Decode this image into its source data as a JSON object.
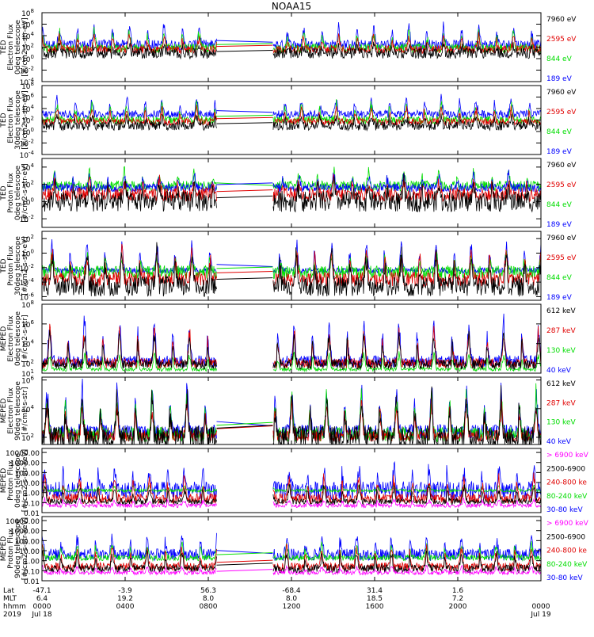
{
  "title": "NOAA15",
  "colors": {
    "blue": "#0000ff",
    "red": "#e00000",
    "green": "#00dd00",
    "black": "#000000",
    "magenta": "#ff00ff"
  },
  "xaxis": {
    "rows": [
      {
        "name": "Lat",
        "values": [
          "-47.1",
          "-3.9",
          "56.3",
          "-68.4",
          "31.4",
          "1.6",
          ""
        ]
      },
      {
        "name": "MLT",
        "values": [
          "6.4",
          "19.2",
          "8.0",
          "8.0",
          "18.5",
          "7.2",
          ""
        ]
      },
      {
        "name": "hhmm",
        "values": [
          "0000",
          "0400",
          "0800",
          "1200",
          "1600",
          "2000",
          "0000"
        ]
      },
      {
        "name": "2019",
        "values": [
          "Jul 18",
          "",
          "",
          "",
          "",
          "",
          "Jul 19"
        ]
      }
    ],
    "range_hours": [
      0,
      24
    ],
    "tick_hours": [
      0,
      4,
      8,
      12,
      16,
      20,
      24
    ]
  },
  "chart_data": [
    {
      "type": "line",
      "id": "p1",
      "ylabel_lines": [
        "TED",
        "Electron Flux",
        "0deg telescope",
        "[#/cm2-s-str-eV]"
      ],
      "scale": "log",
      "ylim": [
        -4,
        8
      ],
      "ticks": [
        {
          "v": 8,
          "b": "10",
          "e": "8"
        },
        {
          "v": 6,
          "b": "10",
          "e": "6"
        },
        {
          "v": 4,
          "b": "10",
          "e": "4"
        },
        {
          "v": 2,
          "b": "10",
          "e": "2"
        },
        {
          "v": 0,
          "b": "10",
          "e": "0"
        },
        {
          "v": -2,
          "b": "10",
          "e": "-2"
        },
        {
          "v": -4,
          "b": "10",
          "e": "-4"
        }
      ],
      "legend": [
        {
          "text": "7960 eV",
          "color": "black"
        },
        {
          "text": "2595 eV",
          "color": "red"
        },
        {
          "text": "844 eV",
          "color": "green"
        },
        {
          "text": "189 eV",
          "color": "blue"
        }
      ],
      "series": [
        {
          "color": "blue",
          "base": 2.4,
          "peak": 6.2,
          "noise": 0.9
        },
        {
          "color": "green",
          "base": 1.8,
          "peak": 5.0,
          "noise": 0.8
        },
        {
          "color": "red",
          "base": 1.6,
          "peak": 4.2,
          "noise": 0.7
        },
        {
          "color": "black",
          "base": 0.9,
          "peak": 2.6,
          "noise": 0.9
        }
      ],
      "gap": [
        8.4,
        11.1
      ],
      "gapline": true
    },
    {
      "type": "line",
      "id": "p2",
      "ylabel_lines": [
        "TED",
        "Electron Flux",
        "30deg telescope",
        "[#/cm2-s-str-eV]"
      ],
      "scale": "log",
      "ylim": [
        -4,
        8
      ],
      "ticks": [
        {
          "v": 8,
          "b": "10",
          "e": "8"
        },
        {
          "v": 6,
          "b": "10",
          "e": "6"
        },
        {
          "v": 4,
          "b": "10",
          "e": "4"
        },
        {
          "v": 2,
          "b": "10",
          "e": "2"
        },
        {
          "v": 0,
          "b": "10",
          "e": "0"
        },
        {
          "v": -2,
          "b": "10",
          "e": "-2"
        },
        {
          "v": -4,
          "b": "10",
          "e": "-4"
        }
      ],
      "legend": [
        {
          "text": "7960 eV",
          "color": "black"
        },
        {
          "text": "2595 eV",
          "color": "red"
        },
        {
          "text": "844 eV",
          "color": "green"
        },
        {
          "text": "189 eV",
          "color": "blue"
        }
      ],
      "series": [
        {
          "color": "blue",
          "base": 3.0,
          "peak": 6.2,
          "noise": 0.7
        },
        {
          "color": "green",
          "base": 2.0,
          "peak": 5.2,
          "noise": 0.7
        },
        {
          "color": "red",
          "base": 1.7,
          "peak": 4.4,
          "noise": 0.6
        },
        {
          "color": "black",
          "base": 1.0,
          "peak": 2.8,
          "noise": 0.8
        }
      ],
      "gap": [
        8.4,
        11.1
      ],
      "gapline": true
    },
    {
      "type": "line",
      "id": "p3",
      "ylabel_lines": [
        "TED",
        "Proton Flux",
        "0deg telescope",
        "[#/cm2-s-str-eV]"
      ],
      "scale": "log",
      "ylim": [
        -3,
        5
      ],
      "ticks": [
        {
          "v": 4,
          "b": "10",
          "e": "4"
        },
        {
          "v": 2,
          "b": "10",
          "e": "2"
        },
        {
          "v": 0,
          "b": "10",
          "e": "0"
        },
        {
          "v": -2,
          "b": "10",
          "e": "-2"
        }
      ],
      "legend": [
        {
          "text": "7960 eV",
          "color": "black"
        },
        {
          "text": "2595 eV",
          "color": "red"
        },
        {
          "text": "844 eV",
          "color": "green"
        },
        {
          "text": "189 eV",
          "color": "blue"
        }
      ],
      "series": [
        {
          "color": "green",
          "base": 1.8,
          "peak": 3.6,
          "noise": 0.6
        },
        {
          "color": "blue",
          "base": 1.6,
          "peak": 3.4,
          "noise": 0.5
        },
        {
          "color": "red",
          "base": 0.8,
          "peak": 2.6,
          "noise": 0.8
        },
        {
          "color": "black",
          "base": 0.0,
          "peak": 2.2,
          "noise": 1.2
        }
      ],
      "gap": [
        8.4,
        11.1
      ],
      "gapline": true
    },
    {
      "type": "line",
      "id": "p4",
      "ylabel_lines": [
        "TED",
        "Proton Flux",
        "30deg telescope",
        "[#/cm2-s-str-eV]"
      ],
      "scale": "log",
      "ylim": [
        -6.5,
        3
      ],
      "ticks": [
        {
          "v": 2,
          "b": "10",
          "e": "2"
        },
        {
          "v": 0,
          "b": "10",
          "e": "0"
        },
        {
          "v": -2,
          "b": "10",
          "e": "-2"
        },
        {
          "v": -4,
          "b": "10",
          "e": "-4"
        },
        {
          "v": -6,
          "b": "10",
          "e": "-6"
        }
      ],
      "legend": [
        {
          "text": "7960 eV",
          "color": "black"
        },
        {
          "text": "2595 eV",
          "color": "red"
        },
        {
          "text": "844 eV",
          "color": "green"
        },
        {
          "text": "189 eV",
          "color": "blue"
        }
      ],
      "series": [
        {
          "color": "blue",
          "base": -2.4,
          "peak": 1.8,
          "noise": 0.4
        },
        {
          "color": "green",
          "base": -2.6,
          "peak": -0.2,
          "noise": 0.9
        },
        {
          "color": "red",
          "base": -3.6,
          "peak": 0.8,
          "noise": 1.0
        },
        {
          "color": "black",
          "base": -4.6,
          "peak": 0.4,
          "noise": 1.4
        }
      ],
      "gap": [
        8.4,
        11.1
      ],
      "gapline": true
    },
    {
      "type": "line",
      "id": "p5",
      "ylabel_lines": [
        "MEPED",
        "Electron Flux",
        "0deg telescope",
        "[#/cm2-s-str]"
      ],
      "scale": "log",
      "ylim": [
        1,
        8
      ],
      "ticks": [
        {
          "v": 8,
          "b": "10",
          "e": "8"
        },
        {
          "v": 6,
          "b": "10",
          "e": "6"
        },
        {
          "v": 4,
          "b": "10",
          "e": "4"
        },
        {
          "v": 2,
          "b": "10",
          "e": "2"
        },
        {
          "v": 1,
          "b": "10",
          "e": "1"
        }
      ],
      "legend": [
        {
          "text": "612 keV",
          "color": "black"
        },
        {
          "text": "287 keV",
          "color": "red"
        },
        {
          "text": "130 keV",
          "color": "green"
        },
        {
          "text": "40 keV",
          "color": "blue"
        }
      ],
      "series": [
        {
          "color": "blue",
          "base": 2.2,
          "peak": 6.8,
          "noise": 0.6
        },
        {
          "color": "green",
          "base": 1.4,
          "peak": 3.2,
          "noise": 0.2
        },
        {
          "color": "red",
          "base": 2.0,
          "peak": 5.8,
          "noise": 0.5
        },
        {
          "color": "black",
          "base": 1.9,
          "peak": 5.4,
          "noise": 0.5
        }
      ],
      "gap": [
        8.4,
        11.1
      ],
      "gapline": false
    },
    {
      "type": "line",
      "id": "p6",
      "ylabel_lines": [
        "MEPED",
        "Electron Flux",
        "90deg telescope",
        "[#/cm2-s-str]"
      ],
      "scale": "log",
      "ylim": [
        1.5,
        6.2
      ],
      "ticks": [
        {
          "v": 6,
          "b": "10",
          "e": "6"
        },
        {
          "v": 4,
          "b": "10",
          "e": "4"
        },
        {
          "v": 2,
          "b": "10",
          "e": "2"
        }
      ],
      "legend": [
        {
          "text": "612 keV",
          "color": "black"
        },
        {
          "text": "287 keV",
          "color": "red"
        },
        {
          "text": "130 keV",
          "color": "green"
        },
        {
          "text": "40 keV",
          "color": "blue"
        }
      ],
      "series": [
        {
          "color": "blue",
          "base": 2.4,
          "peak": 5.9,
          "noise": 0.5
        },
        {
          "color": "green",
          "base": 2.2,
          "peak": 5.4,
          "noise": 0.5
        },
        {
          "color": "red",
          "base": 2.1,
          "peak": 4.6,
          "noise": 0.4
        },
        {
          "color": "black",
          "base": 2.0,
          "peak": 5.2,
          "noise": 0.8
        }
      ],
      "gap": [
        8.4,
        11.1
      ],
      "gapline": true
    },
    {
      "type": "line",
      "id": "p7",
      "ylabel_lines": [
        "MEPED",
        "Proton Flux",
        "0deg telescope",
        "[#/cm2-s-str-keV]"
      ],
      "scale": "log",
      "ylim": [
        -2,
        4.4
      ],
      "ticks": [
        {
          "v": 4,
          "t": "10000.00"
        },
        {
          "v": 3,
          "t": "1000.00"
        },
        {
          "v": 2,
          "t": "100.00"
        },
        {
          "v": 1,
          "t": "10.00"
        },
        {
          "v": 0,
          "t": "1.00"
        },
        {
          "v": -1,
          "t": "0.10"
        },
        {
          "v": -2,
          "t": "0.01"
        }
      ],
      "legend": [
        {
          "text": "> 6900 keV",
          "color": "magenta"
        },
        {
          "text": "2500-6900",
          "color": "black"
        },
        {
          "text": "240-800 ke",
          "color": "red"
        },
        {
          "text": "80-240 keV",
          "color": "green"
        },
        {
          "text": "30-80 keV",
          "color": "blue"
        }
      ],
      "series": [
        {
          "color": "blue",
          "base": 0.2,
          "peak": 2.8,
          "noise": 0.9
        },
        {
          "color": "green",
          "base": 0.2,
          "peak": 0.8,
          "noise": 0.15
        },
        {
          "color": "red",
          "base": -0.6,
          "peak": 1.8,
          "noise": 0.5
        },
        {
          "color": "black",
          "base": -0.9,
          "peak": 0.8,
          "noise": 0.3
        },
        {
          "color": "magenta",
          "base": -1.3,
          "peak": -0.6,
          "noise": 0.2
        }
      ],
      "gap": [
        8.4,
        11.1
      ],
      "gapline": false
    },
    {
      "type": "line",
      "id": "p8",
      "ylabel_lines": [
        "MEPED",
        "Proton Flux",
        "90deg telescope",
        "[#/cm2-s-str-keV]"
      ],
      "scale": "log",
      "ylim": [
        -2,
        4.4
      ],
      "ticks": [
        {
          "v": 4,
          "t": "10000.00"
        },
        {
          "v": 3,
          "t": "1000.00"
        },
        {
          "v": 2,
          "t": "100.00"
        },
        {
          "v": 1,
          "t": "10.00"
        },
        {
          "v": 0,
          "t": "1.00"
        },
        {
          "v": -1,
          "t": "0.10"
        },
        {
          "v": -2,
          "t": "0.01"
        }
      ],
      "legend": [
        {
          "text": "> 6900 keV",
          "color": "magenta"
        },
        {
          "text": "2500-6900",
          "color": "black"
        },
        {
          "text": "240-800 ke",
          "color": "red"
        },
        {
          "text": "80-240 keV",
          "color": "green"
        },
        {
          "text": "30-80 keV",
          "color": "blue"
        }
      ],
      "series": [
        {
          "color": "blue",
          "base": 0.6,
          "peak": 2.7,
          "noise": 0.6
        },
        {
          "color": "green",
          "base": 0.3,
          "peak": 1.8,
          "noise": 0.3
        },
        {
          "color": "red",
          "base": -0.6,
          "peak": 1.6,
          "noise": 0.4
        },
        {
          "color": "black",
          "base": -0.8,
          "peak": 1.0,
          "noise": 0.4
        },
        {
          "color": "magenta",
          "base": -1.2,
          "peak": -0.5,
          "noise": 0.2
        }
      ],
      "gap": [
        8.4,
        11.1
      ],
      "gapline": true
    }
  ]
}
